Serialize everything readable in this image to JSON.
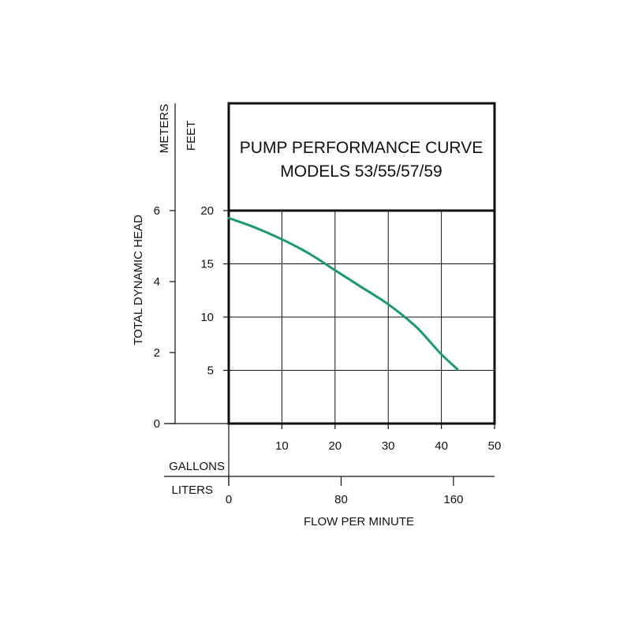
{
  "chart_data": {
    "type": "line",
    "title": "PUMP PERFORMANCE CURVE",
    "subtitle": "MODELS 53/55/57/59",
    "xlabel": "FLOW PER MINUTE",
    "ylabel": "TOTAL DYNAMIC HEAD",
    "x_unit_primary": "GALLONS",
    "x_unit_secondary": "LITERS",
    "y_unit_feet": "FEET",
    "y_unit_meters": "METERS",
    "xlim": [
      0,
      50
    ],
    "ylim_feet": [
      0,
      20
    ],
    "ylim_meters": [
      0,
      6
    ],
    "x_ticks_gallons": [
      "10",
      "20",
      "30",
      "40",
      "50"
    ],
    "x_ticks_liters": [
      "0",
      "80",
      "160"
    ],
    "y_ticks_feet": [
      "5",
      "10",
      "15",
      "20"
    ],
    "y_ticks_meters": [
      "0",
      "2",
      "4",
      "6"
    ],
    "grid": true,
    "series": [
      {
        "color": "#1a9a6a",
        "x": [
          0,
          5,
          10,
          15,
          20,
          25,
          30,
          35,
          38,
          40,
          43
        ],
        "y": [
          19.3,
          18.4,
          17.3,
          16.0,
          14.4,
          12.8,
          11.2,
          9.2,
          7.6,
          6.5,
          5.1
        ]
      }
    ]
  }
}
